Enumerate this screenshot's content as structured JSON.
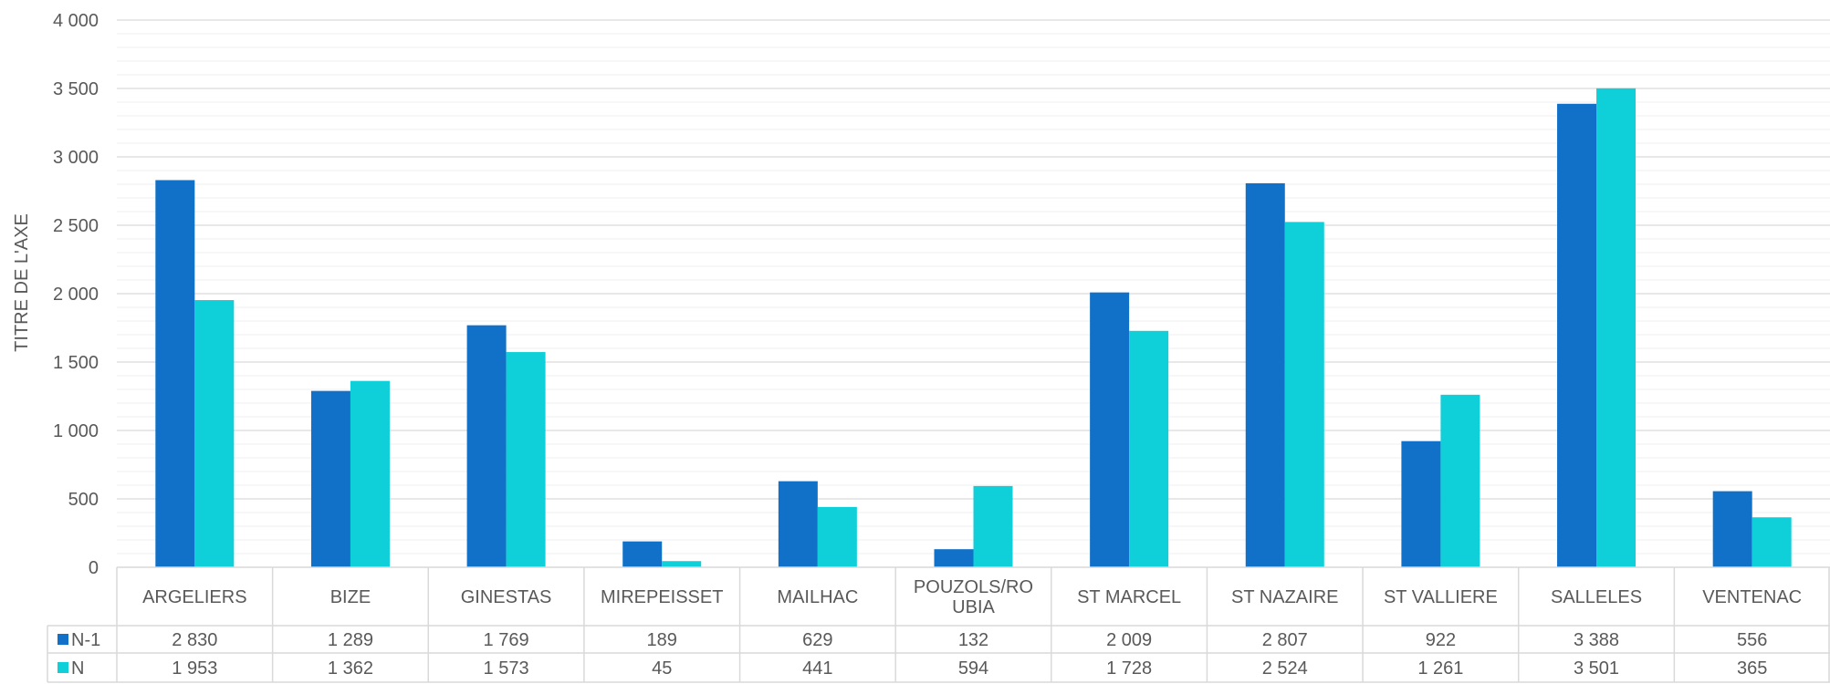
{
  "chart_data": {
    "type": "bar",
    "title": "",
    "xlabel": "",
    "ylabel": "TITRE DE L'AXE",
    "ylim": [
      0,
      4000
    ],
    "y_ticks": [
      0,
      500,
      1000,
      1500,
      2000,
      2500,
      3000,
      3500,
      4000
    ],
    "y_tick_labels": [
      "0",
      "500",
      "1 000",
      "1 500",
      "2 000",
      "2 500",
      "3 000",
      "3 500",
      "4 000"
    ],
    "minor_gridlines": true,
    "legend": "data-table",
    "categories": [
      "ARGELIERS",
      "BIZE",
      "GINESTAS",
      "MIREPEISSET",
      "MAILHAC",
      "POUZOLS/ROUBIA",
      "ST MARCEL",
      "ST NAZAIRE",
      "ST VALLIERE",
      "SALLELES",
      "VENTENAC"
    ],
    "category_display": [
      [
        "ARGELIERS"
      ],
      [
        "BIZE"
      ],
      [
        "GINESTAS"
      ],
      [
        "MIREPEISSET"
      ],
      [
        "MAILHAC"
      ],
      [
        "POUZOLS/RO",
        "UBIA"
      ],
      [
        "ST MARCEL"
      ],
      [
        "ST NAZAIRE"
      ],
      [
        "ST VALLIERE"
      ],
      [
        "SALLELES"
      ],
      [
        "VENTENAC"
      ]
    ],
    "series": [
      {
        "name": "N-1",
        "color": "#1170C8",
        "values": [
          2830,
          1289,
          1769,
          189,
          629,
          132,
          2009,
          2807,
          922,
          3388,
          556
        ],
        "labels": [
          "2 830",
          "1 289",
          "1 769",
          "189",
          "629",
          "132",
          "2 009",
          "2 807",
          "922",
          "3 388",
          "556"
        ]
      },
      {
        "name": "N",
        "color": "#0FCFD8",
        "values": [
          1953,
          1362,
          1573,
          45,
          441,
          594,
          1728,
          2524,
          1261,
          3501,
          365
        ],
        "labels": [
          "1 953",
          "1 362",
          "1 573",
          "45",
          "441",
          "594",
          "1 728",
          "2 524",
          "1 261",
          "3 501",
          "365"
        ]
      }
    ]
  }
}
